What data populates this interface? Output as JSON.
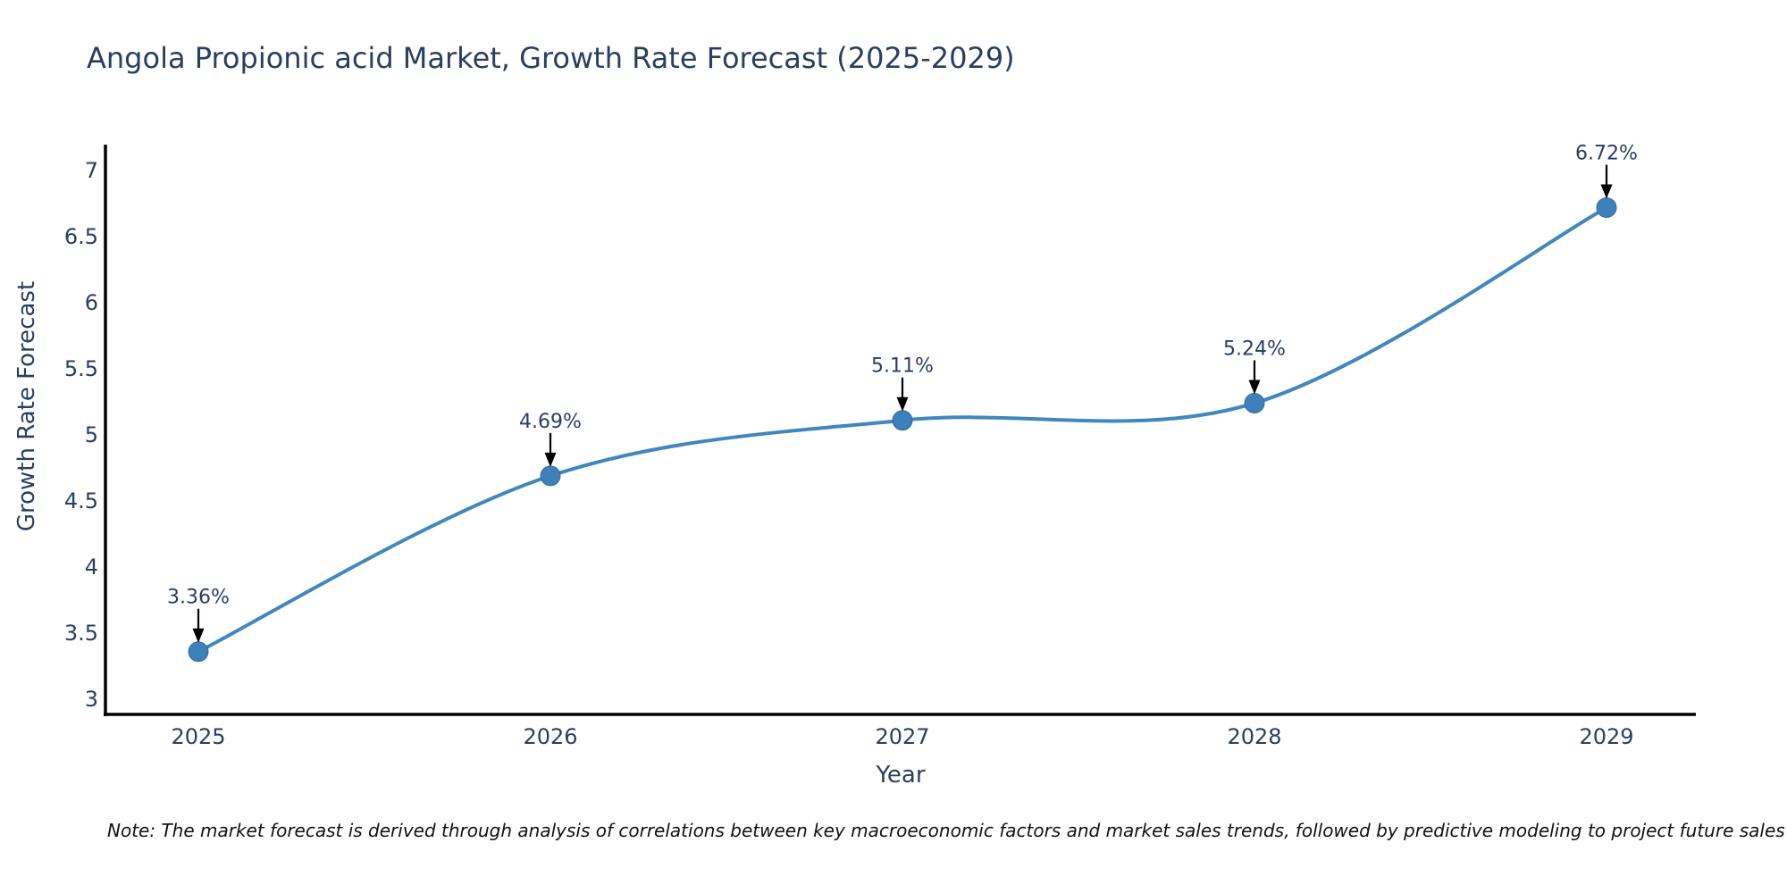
{
  "title": "Angola Propionic acid Market, Growth Rate Forecast (2025-2029)",
  "note": "Note: The market forecast is derived through analysis of correlations between key macroeconomic factors and market sales trends, followed by predictive modeling to project future sales",
  "chart_data": {
    "type": "line",
    "title": "Angola Propionic acid Market, Growth Rate Forecast (2025-2029)",
    "xlabel": "Year",
    "ylabel": "Growth Rate Forecast",
    "x": [
      "2025",
      "2026",
      "2027",
      "2028",
      "2029"
    ],
    "values": [
      3.36,
      4.69,
      5.11,
      5.24,
      6.72
    ],
    "point_labels": [
      "3.36%",
      "4.69%",
      "5.11%",
      "5.24%",
      "6.72%"
    ],
    "yticks": [
      3,
      3.5,
      4,
      4.5,
      5,
      5.5,
      6,
      6.5,
      7
    ],
    "ytick_labels": [
      "3",
      "3.5",
      "4",
      "4.5",
      "5",
      "5.5",
      "6",
      "6.5",
      "7"
    ],
    "ylim": [
      2.88,
      7.2
    ],
    "grid": false,
    "legend": "none",
    "line_shape": "spline",
    "line_color": "#4187bd",
    "marker_color": "#3d80ba",
    "marker_edge_color": "#34729f",
    "axis_color": "#000000",
    "text_color": "#2a3f5f",
    "annotation_arrow_color": "#000000"
  }
}
